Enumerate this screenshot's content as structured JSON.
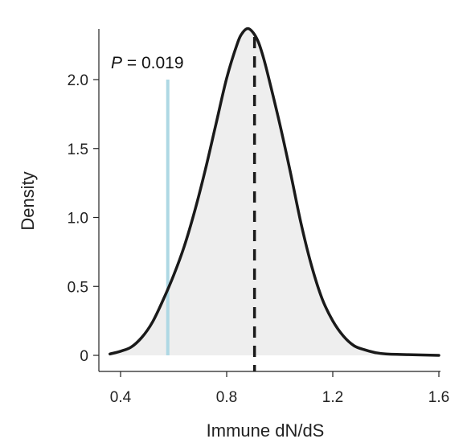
{
  "chart_data": {
    "type": "area",
    "title": "",
    "xlabel": "Immune dN/dS",
    "ylabel": "Density",
    "xlim": [
      0.33,
      1.62
    ],
    "ylim": [
      0,
      2.38
    ],
    "x_ticks": [
      {
        "value": 0.4,
        "label": "0.4"
      },
      {
        "value": 0.8,
        "label": "0.8"
      },
      {
        "value": 1.2,
        "label": "1.2"
      },
      {
        "value": 1.6,
        "label": "1.6"
      }
    ],
    "y_ticks": [
      {
        "value": 0,
        "label": "0"
      },
      {
        "value": 0.5,
        "label": "0.5"
      },
      {
        "value": 1.0,
        "label": "1.0"
      },
      {
        "value": 1.5,
        "label": "1.5"
      },
      {
        "value": 2.0,
        "label": "2.0"
      }
    ],
    "grid": false,
    "legend": "none",
    "series": [
      {
        "x": [
          0.36,
          0.4,
          0.44,
          0.48,
          0.52,
          0.56,
          0.6,
          0.64,
          0.68,
          0.72,
          0.76,
          0.8,
          0.84,
          0.86,
          0.88,
          0.9,
          0.92,
          0.94,
          0.96,
          1.0,
          1.04,
          1.08,
          1.12,
          1.16,
          1.2,
          1.24,
          1.28,
          1.32,
          1.36,
          1.4,
          1.48,
          1.6
        ],
        "y": [
          0.01,
          0.03,
          0.06,
          0.13,
          0.24,
          0.4,
          0.58,
          0.79,
          1.05,
          1.35,
          1.68,
          2.01,
          2.26,
          2.34,
          2.37,
          2.34,
          2.27,
          2.15,
          2.0,
          1.68,
          1.33,
          0.96,
          0.65,
          0.41,
          0.25,
          0.14,
          0.07,
          0.04,
          0.02,
          0.01,
          0.005,
          0.0
        ]
      }
    ],
    "reference_lines": [
      {
        "x": 0.578,
        "label": "P = 0.019",
        "style": "solid",
        "color": "#aed8e4"
      },
      {
        "x": 0.905,
        "label": "",
        "style": "dashed",
        "color": "#1a1a1a"
      }
    ],
    "colors": {
      "fill": "#eeeeee",
      "curve": "#1a1a1a",
      "observed_line": "#aed8e4",
      "axis": "#222222"
    }
  }
}
